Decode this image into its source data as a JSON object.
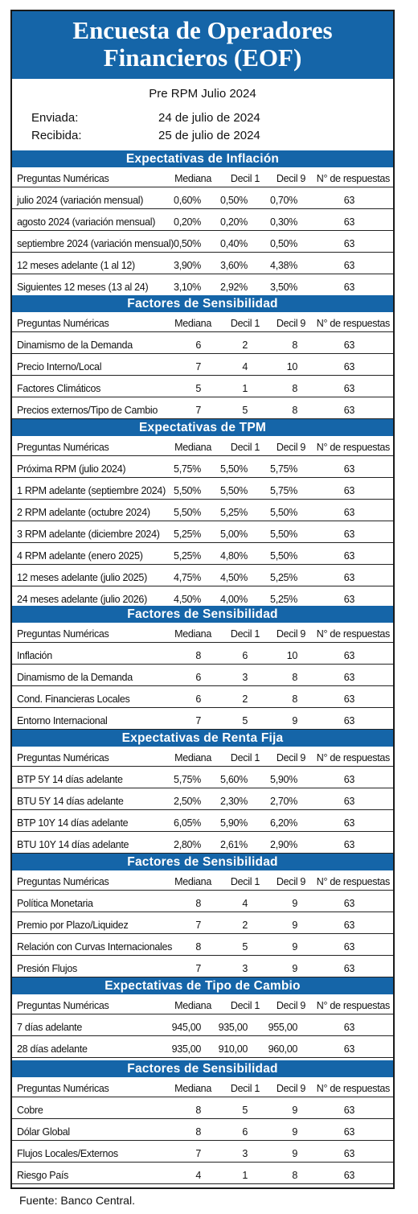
{
  "title": [
    "Encuesta de Operadores",
    "Financieros (EOF)"
  ],
  "subtitle": "Pre RPM Julio 2024",
  "sent_label": "Enviada:",
  "sent_date": "24 de julio de 2024",
  "received_label": "Recibida:",
  "received_date": "25 de julio de 2024",
  "columns": [
    "Preguntas Numéricas",
    "Mediana",
    "Decil 1",
    "Decil 9",
    "N° de respuestas"
  ],
  "sections": [
    {
      "title": "Expectativas de Inflación",
      "rows": [
        [
          "julio 2024 (variación mensual)",
          "0,60%",
          "0,50%",
          "0,70%",
          "63"
        ],
        [
          "agosto 2024 (variación mensual)",
          "0,20%",
          "0,20%",
          "0,30%",
          "63"
        ],
        [
          "septiembre 2024 (variación mensual)",
          "0,50%",
          "0,40%",
          "0,50%",
          "63"
        ],
        [
          "12 meses adelante (1 al 12)",
          "3,90%",
          "3,60%",
          "4,38%",
          "63"
        ],
        [
          "Siguientes 12 meses (13 al 24)",
          "3,10%",
          "2,92%",
          "3,50%",
          "63"
        ]
      ]
    },
    {
      "title": "Factores de Sensibilidad",
      "rows": [
        [
          "Dinamismo de la Demanda",
          "6",
          "2",
          "8",
          "63"
        ],
        [
          "Precio Interno/Local",
          "7",
          "4",
          "10",
          "63"
        ],
        [
          "Factores Climáticos",
          "5",
          "1",
          "8",
          "63"
        ],
        [
          "Precios externos/Tipo de Cambio",
          "7",
          "5",
          "8",
          "63"
        ]
      ]
    },
    {
      "title": "Expectativas de TPM",
      "rows": [
        [
          "Próxima  RPM  (julio 2024)",
          "5,75%",
          "5,50%",
          "5,75%",
          "63"
        ],
        [
          "1 RPM adelante  (septiembre 2024)",
          "5,50%",
          "5,50%",
          "5,75%",
          "63"
        ],
        [
          "2 RPM adelante  (octubre 2024)",
          "5,50%",
          "5,25%",
          "5,50%",
          "63"
        ],
        [
          "3 RPM adelante  (diciembre 2024)",
          "5,25%",
          "5,00%",
          "5,50%",
          "63"
        ],
        [
          "4 RPM adelante  (enero 2025)",
          "5,25%",
          "4,80%",
          "5,50%",
          "63"
        ],
        [
          "12 meses adelante  (julio 2025)",
          "4,75%",
          "4,50%",
          "5,25%",
          "63"
        ],
        [
          "24 meses adelante  (julio 2026)",
          "4,50%",
          "4,00%",
          "5,25%",
          "63"
        ]
      ]
    },
    {
      "title": "Factores de Sensibilidad",
      "rows": [
        [
          "Inflación",
          "8",
          "6",
          "10",
          "63"
        ],
        [
          "Dinamismo de la Demanda",
          "6",
          "3",
          "8",
          "63"
        ],
        [
          "Cond. Financieras Locales",
          "6",
          "2",
          "8",
          "63"
        ],
        [
          "Entorno Internacional",
          "7",
          "5",
          "9",
          "63"
        ]
      ]
    },
    {
      "title": "Expectativas  de Renta Fija",
      "rows": [
        [
          " BTP 5Y 14 días adelante",
          "5,75%",
          "5,60%",
          "5,90%",
          "63"
        ],
        [
          " BTU 5Y 14 días adelante",
          "2,50%",
          "2,30%",
          "2,70%",
          "63"
        ],
        [
          " BTP 10Y 14 días adelante",
          "6,05%",
          "5,90%",
          "6,20%",
          "63"
        ],
        [
          " BTU 10Y 14 días adelante",
          "2,80%",
          "2,61%",
          "2,90%",
          "63"
        ]
      ]
    },
    {
      "title": "Factores de Sensibilidad",
      "rows": [
        [
          "Política Monetaria",
          "8",
          "4",
          "9",
          "63"
        ],
        [
          "Premio por Plazo/Liquidez",
          "7",
          "2",
          "9",
          "63"
        ],
        [
          "Relación con Curvas Internacionales",
          "8",
          "5",
          "9",
          "63"
        ],
        [
          "Presión Flujos",
          "7",
          "3",
          "9",
          "63"
        ]
      ]
    },
    {
      "title": "Expectativas  de Tipo de Cambio",
      "rows": [
        [
          " 7 días adelante",
          "945,00",
          "935,00",
          "955,00",
          "63"
        ],
        [
          " 28 días adelante",
          "935,00",
          "910,00",
          "960,00",
          "63"
        ]
      ]
    },
    {
      "title": "Factores de Sensibilidad",
      "rows": [
        [
          "Cobre",
          "8",
          "5",
          "9",
          "63"
        ],
        [
          "Dólar Global",
          "8",
          "6",
          "9",
          "63"
        ],
        [
          "Flujos Locales/Externos",
          "7",
          "3",
          "9",
          "63"
        ],
        [
          "Riesgo País",
          "4",
          "1",
          "8",
          "63"
        ]
      ]
    }
  ],
  "source": "Fuente: Banco Central."
}
